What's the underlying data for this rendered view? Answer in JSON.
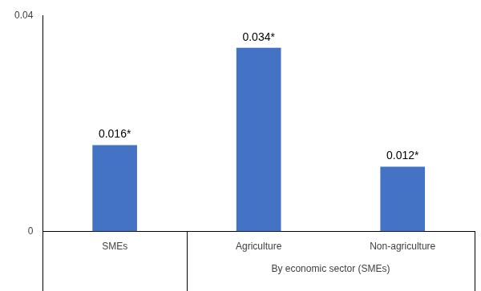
{
  "chart_data": {
    "type": "bar",
    "categories": [
      "SMEs",
      "Agriculture",
      "Non-agriculture"
    ],
    "values": [
      0.016,
      0.034,
      0.012
    ],
    "value_labels": [
      "0.016*",
      "0.034*",
      "0.012*"
    ],
    "color": "#4472c4",
    "ylim": [
      0,
      0.04
    ],
    "yticks": [
      0,
      0.04
    ],
    "grid": false,
    "data_labels": true,
    "groups": [
      {
        "label": "By economic sector (SMEs)",
        "categories": [
          "Agriculture",
          "Non-agriculture"
        ]
      }
    ]
  }
}
